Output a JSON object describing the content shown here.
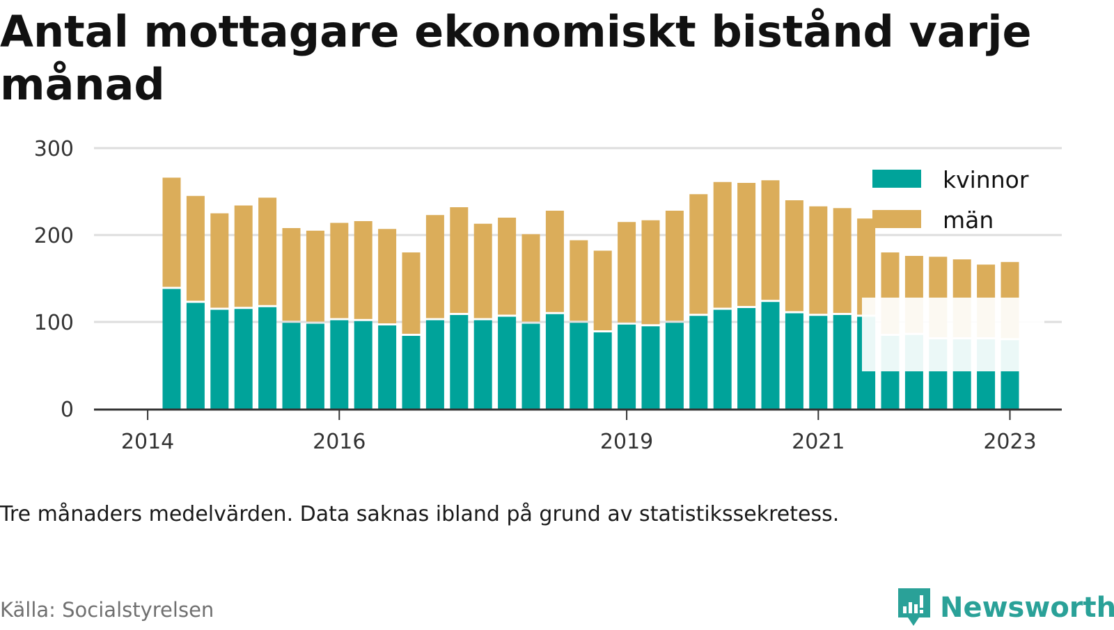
{
  "title": "Antal mottagare ekonomiskt bistånd varje månad",
  "footnote": "Tre månaders medelvärden. Data saknas ibland på grund av statistikssekretess.",
  "source": "Källa: Socialstyrelsen",
  "brand": {
    "name": "Newsworthy",
    "color": "#2aa198"
  },
  "colors": {
    "kvinnor": "#00a39a",
    "man": "#dbad5a",
    "grid": "#dddddd",
    "axis": "#333333"
  },
  "chart_data": {
    "type": "bar",
    "stacked": true,
    "ylim": [
      0,
      300
    ],
    "yticks": [
      0,
      100,
      200,
      300
    ],
    "xticks": [
      {
        "label": "2014",
        "pos": -1
      },
      {
        "label": "2016",
        "pos": 7
      },
      {
        "label": "2019",
        "pos": 19
      },
      {
        "label": "2021",
        "pos": 27
      },
      {
        "label": "2023",
        "pos": 35
      }
    ],
    "grid": true,
    "legend_position": "top-right",
    "series": [
      {
        "name": "kvinnor",
        "values": [
          138,
          122,
          114,
          115,
          117,
          99,
          98,
          102,
          101,
          96,
          84,
          102,
          108,
          102,
          106,
          98,
          109,
          99,
          88,
          97,
          95,
          99,
          107,
          114,
          116,
          123,
          110,
          107,
          108,
          106,
          84,
          85,
          80,
          80,
          80,
          79
        ]
      },
      {
        "name": "män",
        "values": [
          128,
          123,
          111,
          119,
          126,
          109,
          107,
          112,
          115,
          111,
          96,
          121,
          124,
          111,
          114,
          103,
          119,
          95,
          94,
          118,
          122,
          129,
          140,
          147,
          144,
          140,
          130,
          126,
          123,
          113,
          96,
          91,
          95,
          92,
          86,
          90
        ]
      }
    ]
  }
}
